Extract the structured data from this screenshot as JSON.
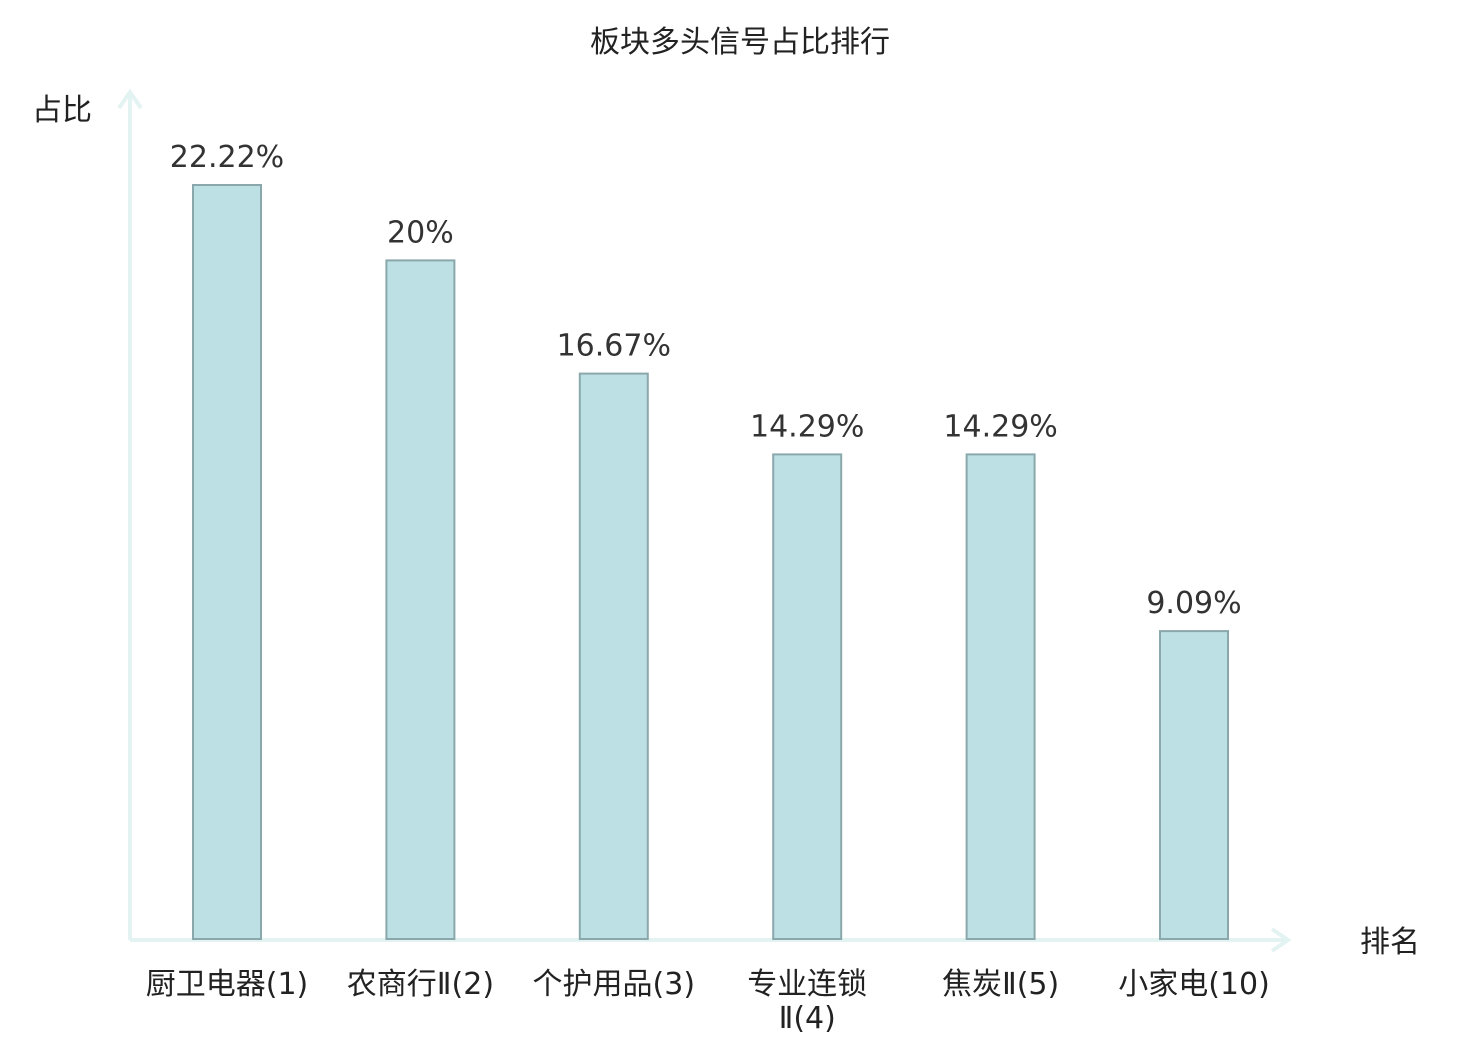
{
  "chart_data": {
    "type": "bar",
    "title": "板块多头信号占比排行",
    "ylabel": "占比",
    "xlabel": "排名",
    "categories": [
      [
        "厨卫电器(1)"
      ],
      [
        "农商行Ⅱ(2)"
      ],
      [
        "个护用品(3)"
      ],
      [
        "专业连锁",
        "Ⅱ(4)"
      ],
      [
        "焦炭Ⅱ(5)"
      ],
      [
        "小家电(10)"
      ]
    ],
    "values": [
      22.22,
      20,
      16.67,
      14.29,
      14.29,
      9.09
    ],
    "value_labels": [
      "22.22%",
      "20%",
      "16.67%",
      "14.29%",
      "14.29%",
      "9.09%"
    ],
    "category_colors": [
      "#222222",
      "#222222",
      "#222222",
      "#222222",
      "#222222",
      "#e02020"
    ],
    "ylim": [
      0,
      25
    ],
    "grid": false,
    "bar_color": "#bce0e3",
    "bar_border_color": "#8aa8ab",
    "axis_color": "#e3f3f1"
  }
}
